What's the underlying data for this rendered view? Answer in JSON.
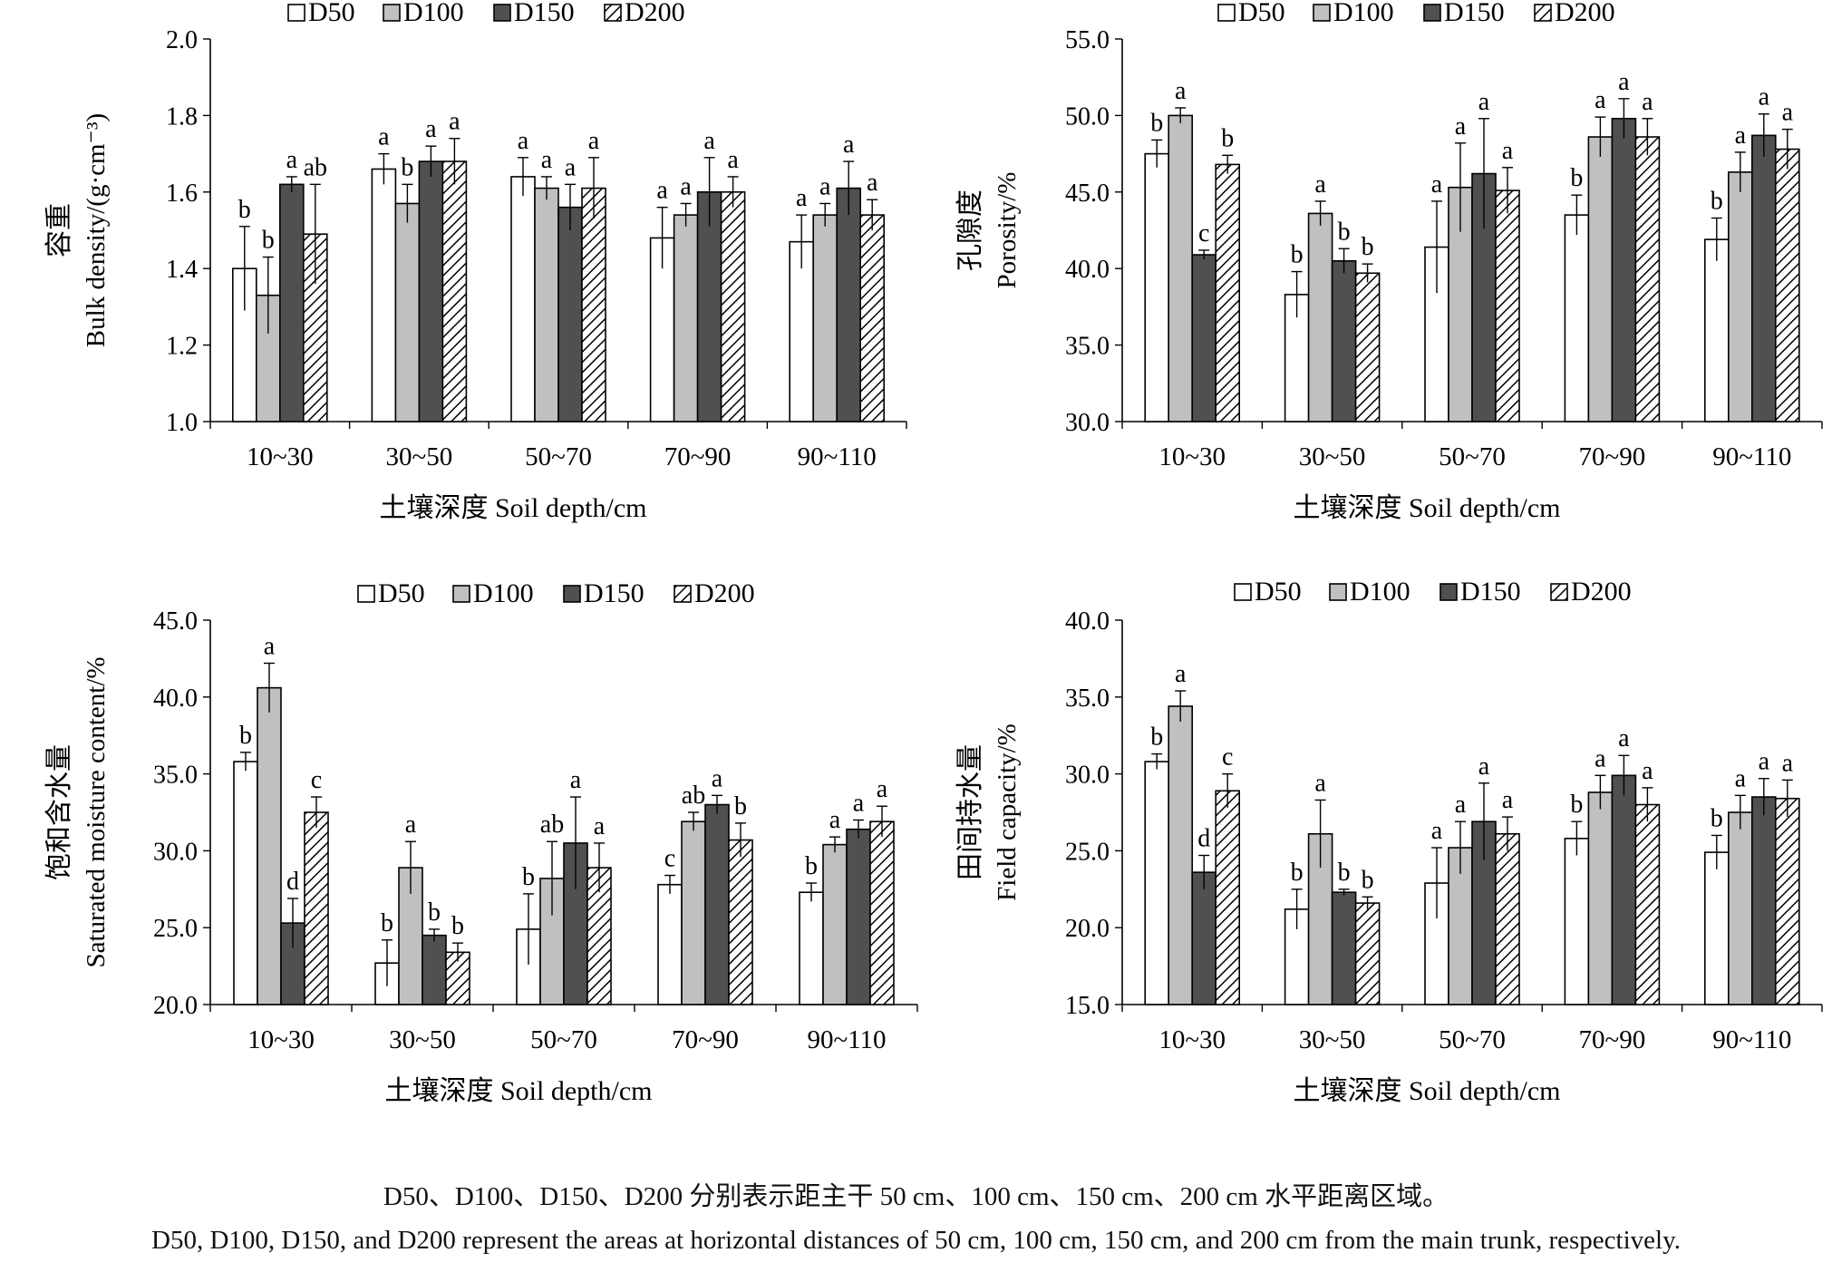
{
  "chart_data": [
    {
      "type": "bar",
      "ylabel_zh": "容重",
      "ylabel_en": "Bulk density/(g·cm⁻³)",
      "xlabel": "土壤深度 Soil depth/cm",
      "ylim": [
        1.0,
        2.0
      ],
      "yticks": [
        "1.0",
        "1.2",
        "1.4",
        "1.6",
        "1.8",
        "2.0"
      ],
      "categories": [
        "10~30",
        "30~50",
        "50~70",
        "70~90",
        "90~110"
      ],
      "legend": [
        "D50",
        "D100",
        "D150",
        "D200"
      ],
      "legend_position": "top",
      "series": [
        {
          "name": "D50",
          "values": [
            1.4,
            1.66,
            1.64,
            1.48,
            1.47
          ],
          "errors": [
            0.11,
            0.04,
            0.05,
            0.08,
            0.07
          ],
          "letters": [
            "b",
            "a",
            "a",
            "a",
            "a"
          ]
        },
        {
          "name": "D100",
          "values": [
            1.33,
            1.57,
            1.61,
            1.54,
            1.54
          ],
          "errors": [
            0.1,
            0.05,
            0.03,
            0.03,
            0.03
          ],
          "letters": [
            "b",
            "b",
            "a",
            "a",
            "a"
          ]
        },
        {
          "name": "D150",
          "values": [
            1.62,
            1.68,
            1.56,
            1.6,
            1.61
          ],
          "errors": [
            0.02,
            0.04,
            0.06,
            0.09,
            0.07
          ],
          "letters": [
            "a",
            "a",
            "a",
            "a",
            "a"
          ]
        },
        {
          "name": "D200",
          "values": [
            1.49,
            1.68,
            1.61,
            1.6,
            1.54
          ],
          "errors": [
            0.13,
            0.06,
            0.08,
            0.04,
            0.04
          ],
          "letters": [
            "ab",
            "a",
            "a",
            "a",
            "a"
          ]
        }
      ]
    },
    {
      "type": "bar",
      "ylabel_zh": "孔隙度",
      "ylabel_en": "Porosity/%",
      "xlabel": "土壤深度 Soil depth/cm",
      "ylim": [
        30.0,
        55.0
      ],
      "yticks": [
        "30.0",
        "35.0",
        "40.0",
        "45.0",
        "50.0",
        "55.0"
      ],
      "categories": [
        "10~30",
        "30~50",
        "50~70",
        "70~90",
        "90~110"
      ],
      "legend": [
        "D50",
        "D100",
        "D150",
        "D200"
      ],
      "legend_position": "top",
      "series": [
        {
          "name": "D50",
          "values": [
            47.5,
            38.3,
            41.4,
            43.5,
            41.9
          ],
          "errors": [
            0.9,
            1.5,
            3.0,
            1.3,
            1.4
          ],
          "letters": [
            "b",
            "b",
            "a",
            "b",
            "b"
          ]
        },
        {
          "name": "D100",
          "values": [
            50.0,
            43.6,
            45.3,
            48.6,
            46.3
          ],
          "errors": [
            0.5,
            0.8,
            2.9,
            1.3,
            1.3
          ],
          "letters": [
            "a",
            "a",
            "a",
            "a",
            "a"
          ]
        },
        {
          "name": "D150",
          "values": [
            40.9,
            40.5,
            46.2,
            49.8,
            48.7
          ],
          "errors": [
            0.3,
            0.8,
            3.6,
            1.3,
            1.4
          ],
          "letters": [
            "c",
            "b",
            "a",
            "a",
            "a"
          ]
        },
        {
          "name": "D200",
          "values": [
            46.8,
            39.7,
            45.1,
            48.6,
            47.8
          ],
          "errors": [
            0.6,
            0.6,
            1.5,
            1.2,
            1.3
          ],
          "letters": [
            "b",
            "b",
            "a",
            "a",
            "a"
          ]
        }
      ]
    },
    {
      "type": "bar",
      "ylabel_zh": "饱和含水量",
      "ylabel_en": "Saturated moisture content/%",
      "xlabel": "土壤深度 Soil depth/cm",
      "ylim": [
        20.0,
        45.0
      ],
      "yticks": [
        "20.0",
        "25.0",
        "30.0",
        "35.0",
        "40.0",
        "45.0"
      ],
      "categories": [
        "10~30",
        "30~50",
        "50~70",
        "70~90",
        "90~110"
      ],
      "legend": [
        "D50",
        "D100",
        "D150",
        "D200"
      ],
      "legend_position": "top",
      "series": [
        {
          "name": "D50",
          "values": [
            35.8,
            22.7,
            24.9,
            27.8,
            27.3
          ],
          "errors": [
            0.6,
            1.5,
            2.3,
            0.6,
            0.6
          ],
          "letters": [
            "b",
            "b",
            "b",
            "c",
            "b"
          ]
        },
        {
          "name": "D100",
          "values": [
            40.6,
            28.9,
            28.2,
            31.9,
            30.4
          ],
          "errors": [
            1.6,
            1.7,
            2.4,
            0.6,
            0.5
          ],
          "letters": [
            "a",
            "a",
            "ab",
            "ab",
            "a"
          ]
        },
        {
          "name": "D150",
          "values": [
            25.3,
            24.5,
            30.5,
            33.0,
            31.4
          ],
          "errors": [
            1.6,
            0.4,
            3.0,
            0.6,
            0.6
          ],
          "letters": [
            "d",
            "b",
            "a",
            "a",
            "a"
          ]
        },
        {
          "name": "D200",
          "values": [
            32.5,
            23.4,
            28.9,
            30.7,
            31.9
          ],
          "errors": [
            1.0,
            0.6,
            1.6,
            1.1,
            1.0
          ],
          "letters": [
            "c",
            "b",
            "a",
            "b",
            "a"
          ]
        }
      ]
    },
    {
      "type": "bar",
      "ylabel_zh": "田间持水量",
      "ylabel_en": "Field capacity/%",
      "xlabel": "土壤深度 Soil depth/cm",
      "ylim": [
        15.0,
        40.0
      ],
      "yticks": [
        "15.0",
        "20.0",
        "25.0",
        "30.0",
        "35.0",
        "40.0"
      ],
      "categories": [
        "10~30",
        "30~50",
        "50~70",
        "70~90",
        "90~110"
      ],
      "legend": [
        "D50",
        "D100",
        "D150",
        "D200"
      ],
      "legend_position": "top",
      "series": [
        {
          "name": "D50",
          "values": [
            30.8,
            21.2,
            22.9,
            25.8,
            24.9
          ],
          "errors": [
            0.5,
            1.3,
            2.3,
            1.1,
            1.1
          ],
          "letters": [
            "b",
            "b",
            "a",
            "b",
            "b"
          ]
        },
        {
          "name": "D100",
          "values": [
            34.4,
            26.1,
            25.2,
            28.8,
            27.5
          ],
          "errors": [
            1.0,
            2.2,
            1.7,
            1.1,
            1.1
          ],
          "letters": [
            "a",
            "a",
            "a",
            "a",
            "a"
          ]
        },
        {
          "name": "D150",
          "values": [
            23.6,
            22.3,
            26.9,
            29.9,
            28.5
          ],
          "errors": [
            1.1,
            0.2,
            2.5,
            1.3,
            1.2
          ],
          "letters": [
            "d",
            "b",
            "a",
            "a",
            "a"
          ]
        },
        {
          "name": "D200",
          "values": [
            28.9,
            21.6,
            26.1,
            28.0,
            28.4
          ],
          "errors": [
            1.1,
            0.4,
            1.1,
            1.1,
            1.2
          ],
          "letters": [
            "c",
            "b",
            "a",
            "a",
            "a"
          ]
        }
      ]
    }
  ],
  "caption": {
    "zh": "D50、D100、D150、D200 分别表示距主干 50 cm、100 cm、150 cm、200 cm 水平距离区域。",
    "en": "D50, D100, D150, and D200 represent the areas at horizontal distances of 50 cm, 100 cm, 150 cm, and 200 cm from the main trunk, respectively."
  }
}
